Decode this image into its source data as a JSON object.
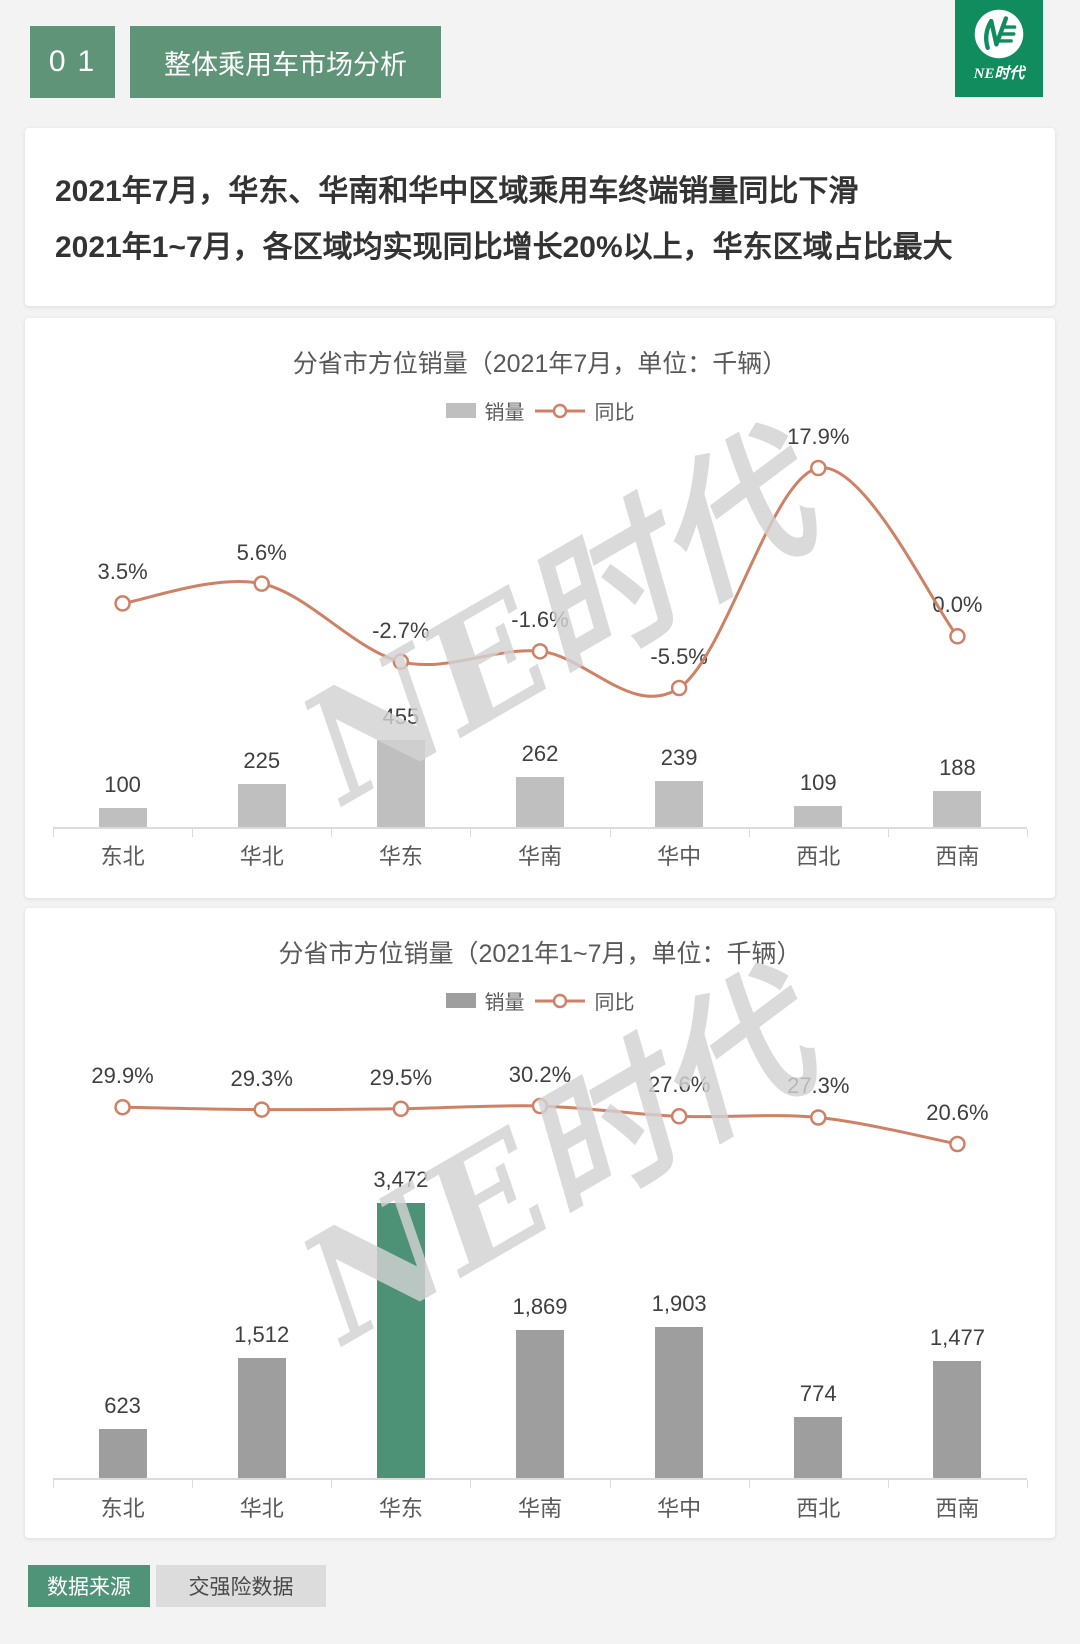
{
  "header": {
    "number": "01",
    "title": "整体乘用车市场分析",
    "logo_text": "NE时代"
  },
  "summary": {
    "line1": "2021年7月，华东、华南和华中区域乘用车终端销量同比下滑",
    "line2": "2021年1~7月，各区域均实现同比增长20%以上，华东区域占比最大"
  },
  "watermark": "NE时代",
  "footer": {
    "source_label": "数据来源",
    "source_value": "交强险数据"
  },
  "colors": {
    "header_green": "#5F9479",
    "logo_green": "#118C5E",
    "line_orange": "#CF8166",
    "bar_gray_light": "#BFBFBF",
    "bar_gray_dark": "#9E9E9E",
    "bar_highlight_green": "#4D9277",
    "footer_badge_green": "#4F9478",
    "footer_badge_gray": "#DCDCDC",
    "text_dark": "#3F3F3F",
    "text_muted": "#595959"
  },
  "chart_data": [
    {
      "type": "bar+line",
      "title": "分省市方位销量（2021年7月，单位：千辆）",
      "categories": [
        "东北",
        "华北",
        "华东",
        "华南",
        "华中",
        "西北",
        "西南"
      ],
      "legend_position": "top",
      "grid": false,
      "highlight_index": null,
      "series": [
        {
          "name": "销量",
          "type": "bar",
          "values": [
            100,
            225,
            455,
            262,
            239,
            109,
            188
          ],
          "labels": [
            "100",
            "225",
            "455",
            "262",
            "239",
            "109",
            "188"
          ]
        },
        {
          "name": "同比",
          "type": "line",
          "values": [
            3.5,
            5.6,
            -2.7,
            -1.6,
            -5.5,
            17.9,
            0.0
          ],
          "labels": [
            "3.5%",
            "5.6%",
            "-2.7%",
            "-1.6%",
            "-5.5%",
            "17.9%",
            "0.0%"
          ]
        }
      ]
    },
    {
      "type": "bar+line",
      "title": "分省市方位销量（2021年1~7月，单位：千辆）",
      "categories": [
        "东北",
        "华北",
        "华东",
        "华南",
        "华中",
        "西北",
        "西南"
      ],
      "legend_position": "top",
      "grid": false,
      "highlight_index": 2,
      "series": [
        {
          "name": "销量",
          "type": "bar",
          "values": [
            623,
            1512,
            3472,
            1869,
            1903,
            774,
            1477
          ],
          "labels": [
            "623",
            "1,512",
            "3,472",
            "1,869",
            "1,903",
            "774",
            "1,477"
          ]
        },
        {
          "name": "同比",
          "type": "line",
          "values": [
            29.9,
            29.3,
            29.5,
            30.2,
            27.6,
            27.3,
            20.6
          ],
          "labels": [
            "29.9%",
            "29.3%",
            "29.5%",
            "30.2%",
            "27.6%",
            "27.3%",
            "20.6%"
          ]
        }
      ]
    }
  ]
}
